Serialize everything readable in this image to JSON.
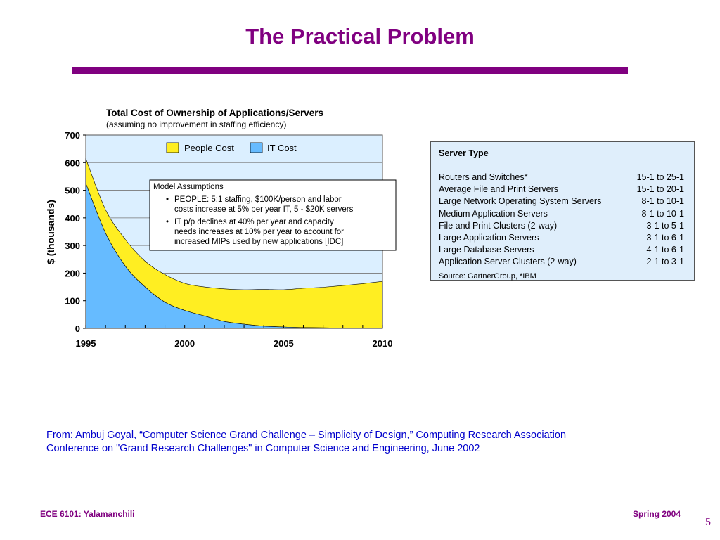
{
  "slide": {
    "title": "The Practical Problem",
    "citation_line1": "From: Ambuj Goyal, “Computer Science Grand Challenge – Simplicity of Design,” Computing Research Association",
    "citation_line2": "Conference on \"Grand Research Challenges\" in Computer Science and Engineering, June 2002",
    "footer_left": "ECE 6101: Yalamanchili",
    "footer_right": "Spring 2004",
    "page_number": "5"
  },
  "colors": {
    "accent": "#800080",
    "people_cost": "#ffee22",
    "it_cost": "#66bbff",
    "plot_background": "#dbefff"
  },
  "chart_data": {
    "type": "area",
    "stacked": true,
    "title": "Total Cost of Ownership of Applications/Servers",
    "subtitle": "(assuming no improvement in staffing efficiency)",
    "ylabel": "$ (thousands)",
    "xlabel": "",
    "xlim": [
      1995,
      2010
    ],
    "ylim": [
      0,
      700
    ],
    "x_tick_labels": [
      "1995",
      "2000",
      "2005",
      "2010"
    ],
    "y_tick_labels": [
      "0",
      "100",
      "200",
      "300",
      "400",
      "500",
      "600",
      "700"
    ],
    "grid": "horizontal",
    "legend_position": "top",
    "x": [
      1995,
      1996,
      1997,
      1998,
      1999,
      2000,
      2001,
      2002,
      2003,
      2004,
      2005,
      2006,
      2007,
      2008,
      2009,
      2010
    ],
    "series": [
      {
        "name": "IT Cost",
        "values": [
          525,
          345,
          225,
          150,
          95,
          65,
          45,
          25,
          15,
          8,
          5,
          3,
          2,
          1,
          1,
          1
        ]
      },
      {
        "name": "People Cost",
        "values": [
          90,
          85,
          97,
          93,
          100,
          98,
          105,
          118,
          125,
          133,
          135,
          142,
          147,
          154,
          161,
          169
        ]
      }
    ],
    "annotation": {
      "title": "Model Assumptions",
      "bullet1_line1": "PEOPLE: 5:1 staffing,  $100K/person and labor",
      "bullet1_line2": "costs increase  at 5% per year IT,  5 - $20K servers",
      "bullet2_line1": "IT p/p declines at 40% per year and capacity",
      "bullet2_line2": "needs increases at 10% per year to account for",
      "bullet2_line3": "increased MIPs used by new applications [IDC]"
    }
  },
  "server_table": {
    "header": "Server Type",
    "rows": [
      {
        "type": "Routers and Switches*",
        "ratio": "15-1 to 25-1"
      },
      {
        "type": "Average File and Print Servers",
        "ratio": "15-1 to 20-1"
      },
      {
        "type": "Large Network Operating System Servers",
        "ratio": "8-1 to 10-1"
      },
      {
        "type": "Medium Application Servers",
        "ratio": "8-1 to 10-1"
      },
      {
        "type": "File and Print Clusters (2-way)",
        "ratio": "3-1 to 5-1"
      },
      {
        "type": "Large Application Servers",
        "ratio": "3-1 to 6-1"
      },
      {
        "type": "Large Database Servers",
        "ratio": "4-1 to 6-1"
      },
      {
        "type": "Application Server Clusters (2-way)",
        "ratio": "2-1 to 3-1"
      }
    ],
    "source": "Source: GartnerGroup, *IBM"
  }
}
